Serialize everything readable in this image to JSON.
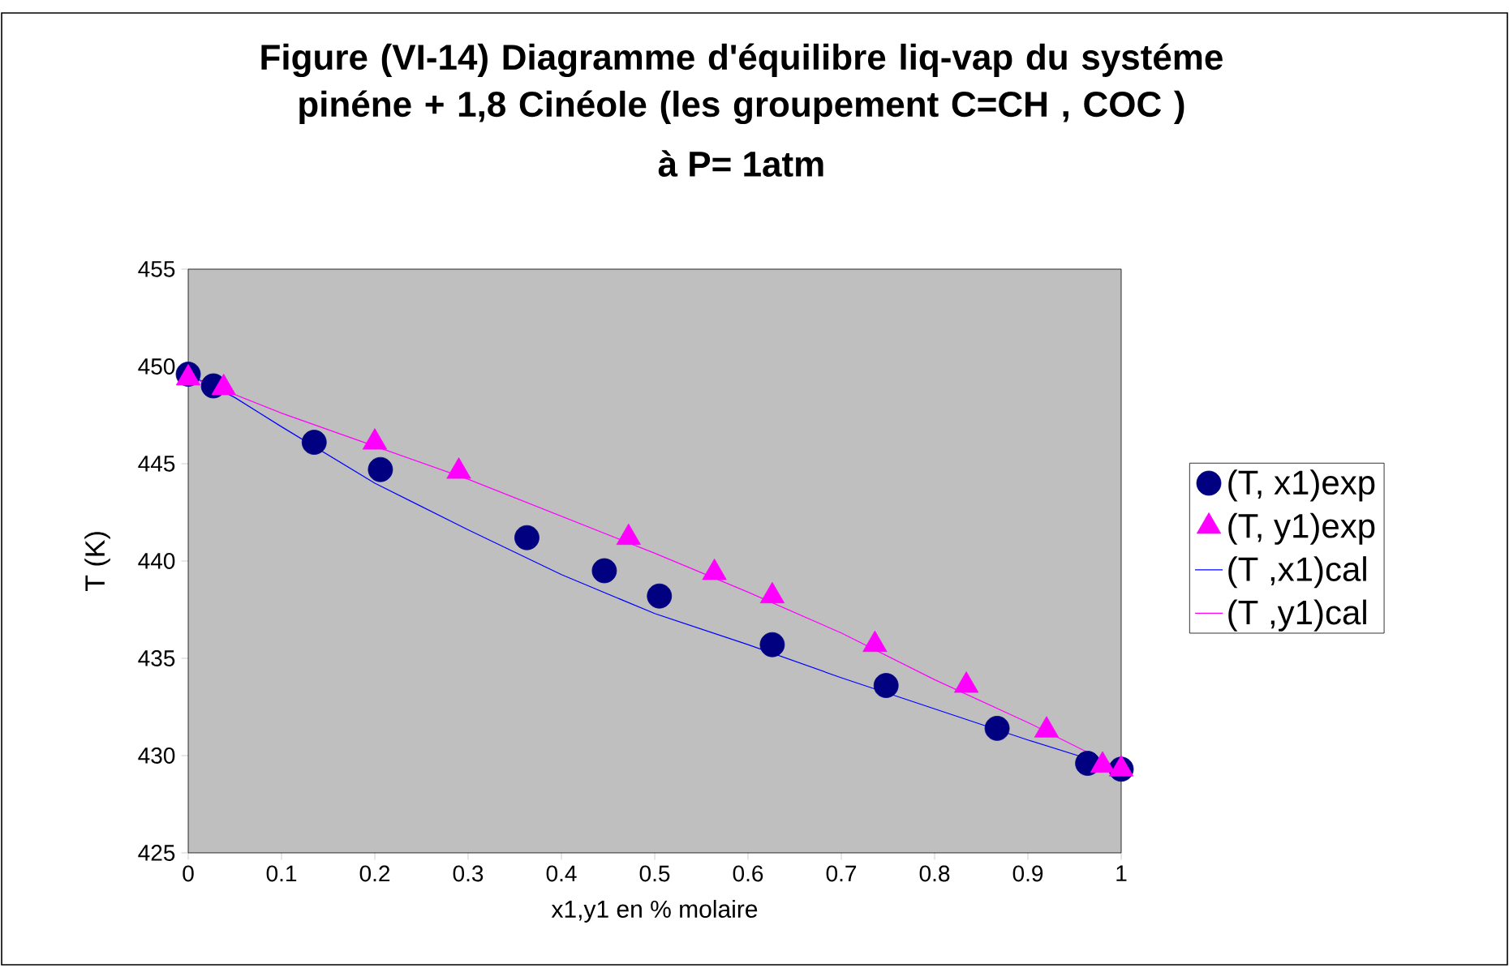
{
  "chart_data": {
    "type": "scatter",
    "title": "Figure (VI-14)  Diagramme d'équilibre liq-vap du systéme  pinéne + 1,8 Cinéole (les groupement C=CH   , COC )",
    "subtitle": "à P= 1atm",
    "xlabel": "x1,y1 en % molaire",
    "ylabel": "T (K)",
    "xlim": [
      0,
      1
    ],
    "xticks": [
      0,
      0.1,
      0.2,
      0.3,
      0.4,
      0.5,
      0.6,
      0.7,
      0.8,
      0.9,
      1
    ],
    "ylim": [
      425,
      455
    ],
    "yticks": [
      425,
      430,
      435,
      440,
      445,
      450,
      455
    ],
    "legend": "right",
    "grid": false,
    "series": [
      {
        "name": "(T, x1)exp",
        "marker": "circle",
        "color": "#000080",
        "x": [
          0,
          0.027,
          0.135,
          0.206,
          0.363,
          0.446,
          0.505,
          0.626,
          0.748,
          0.867,
          0.964,
          1
        ],
        "values": [
          449.6,
          449.0,
          446.1,
          444.7,
          441.2,
          439.5,
          438.2,
          435.7,
          433.6,
          431.4,
          429.6,
          429.3
        ]
      },
      {
        "name": "(T, y1)exp",
        "marker": "triangle",
        "color": "#ff00ff",
        "x": [
          0,
          0.038,
          0.2,
          0.29,
          0.472,
          0.564,
          0.626,
          0.736,
          0.834,
          0.92,
          0.98,
          1
        ],
        "values": [
          449.4,
          448.9,
          446.1,
          444.6,
          441.2,
          439.4,
          438.2,
          435.7,
          433.6,
          431.3,
          429.5,
          429.3
        ]
      },
      {
        "name": "(T ,x1)cal",
        "type": "line",
        "marker": "none",
        "line_style": "solid",
        "color": "#0000ff",
        "x": [
          0,
          0.05,
          0.1,
          0.2,
          0.3,
          0.4,
          0.5,
          0.6,
          0.7,
          0.8,
          0.9,
          1
        ],
        "values": [
          449.6,
          448.4,
          446.9,
          444.0,
          441.6,
          439.3,
          437.3,
          435.7,
          434.0,
          432.4,
          430.8,
          429.3
        ]
      },
      {
        "name": "(T  ,y1)cal",
        "type": "line",
        "marker": "none",
        "line_style": "solid",
        "color": "#ff00ff",
        "x": [
          0,
          0.1,
          0.2,
          0.3,
          0.4,
          0.5,
          0.6,
          0.7,
          0.8,
          0.9,
          1
        ],
        "values": [
          449.5,
          447.6,
          445.9,
          444.2,
          442.3,
          440.4,
          438.4,
          436.3,
          433.9,
          431.7,
          429.3
        ]
      }
    ]
  }
}
